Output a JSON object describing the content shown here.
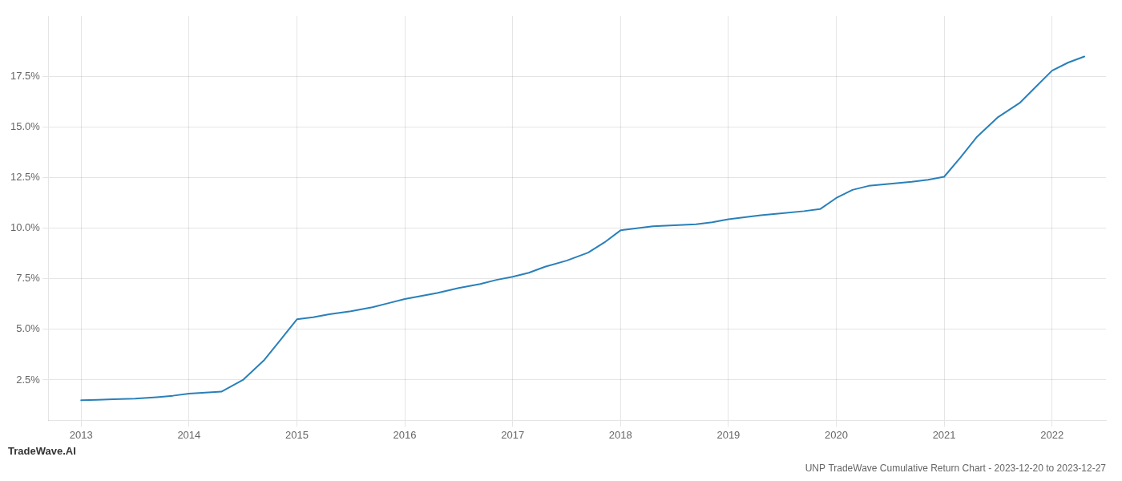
{
  "chart_data": {
    "type": "line",
    "title": "UNP TradeWave Cumulative Return Chart - 2023-12-20 to 2023-12-27",
    "annotations": [
      "TradeWave.AI"
    ],
    "x": [
      2013.0,
      2013.15,
      2013.3,
      2013.5,
      2013.7,
      2013.85,
      2014.0,
      2014.15,
      2014.3,
      2014.5,
      2014.7,
      2014.85,
      2015.0,
      2015.15,
      2015.3,
      2015.5,
      2015.7,
      2015.85,
      2016.0,
      2016.15,
      2016.3,
      2016.5,
      2016.7,
      2016.85,
      2017.0,
      2017.15,
      2017.3,
      2017.5,
      2017.7,
      2017.85,
      2018.0,
      2018.15,
      2018.3,
      2018.5,
      2018.7,
      2018.85,
      2019.0,
      2019.15,
      2019.3,
      2019.5,
      2019.7,
      2019.85,
      2020.0,
      2020.15,
      2020.3,
      2020.5,
      2020.7,
      2020.85,
      2021.0,
      2021.15,
      2021.3,
      2021.5,
      2021.7,
      2021.85,
      2022.0,
      2022.15,
      2022.3
    ],
    "values": [
      1.5,
      1.52,
      1.55,
      1.58,
      1.65,
      1.72,
      1.82,
      1.87,
      1.92,
      2.5,
      3.5,
      4.5,
      5.5,
      5.6,
      5.75,
      5.9,
      6.1,
      6.3,
      6.5,
      6.65,
      6.8,
      7.05,
      7.25,
      7.45,
      7.6,
      7.8,
      8.1,
      8.4,
      8.8,
      9.3,
      9.9,
      10.0,
      10.1,
      10.15,
      10.2,
      10.3,
      10.45,
      10.55,
      10.65,
      10.75,
      10.85,
      10.95,
      11.5,
      11.9,
      12.1,
      12.2,
      12.3,
      12.4,
      12.55,
      13.5,
      14.5,
      15.5,
      16.2,
      17.0,
      17.8,
      18.2,
      18.5
    ],
    "color": "#2980b9",
    "xlim": [
      2012.7,
      2022.5
    ],
    "xticks": [
      2013,
      2014,
      2015,
      2016,
      2017,
      2018,
      2019,
      2020,
      2021,
      2022
    ],
    "ylim": [
      0.5,
      20.5
    ],
    "yticks": [
      {
        "value": 2.5,
        "label": "2.5%"
      },
      {
        "value": 5.0,
        "label": "5.0%"
      },
      {
        "value": 7.5,
        "label": "7.5%"
      },
      {
        "value": 10.0,
        "label": "10.0%"
      },
      {
        "value": 12.5,
        "label": "12.5%"
      },
      {
        "value": 15.0,
        "label": "15.0%"
      },
      {
        "value": 17.5,
        "label": "17.5%"
      }
    ],
    "grid": true
  }
}
